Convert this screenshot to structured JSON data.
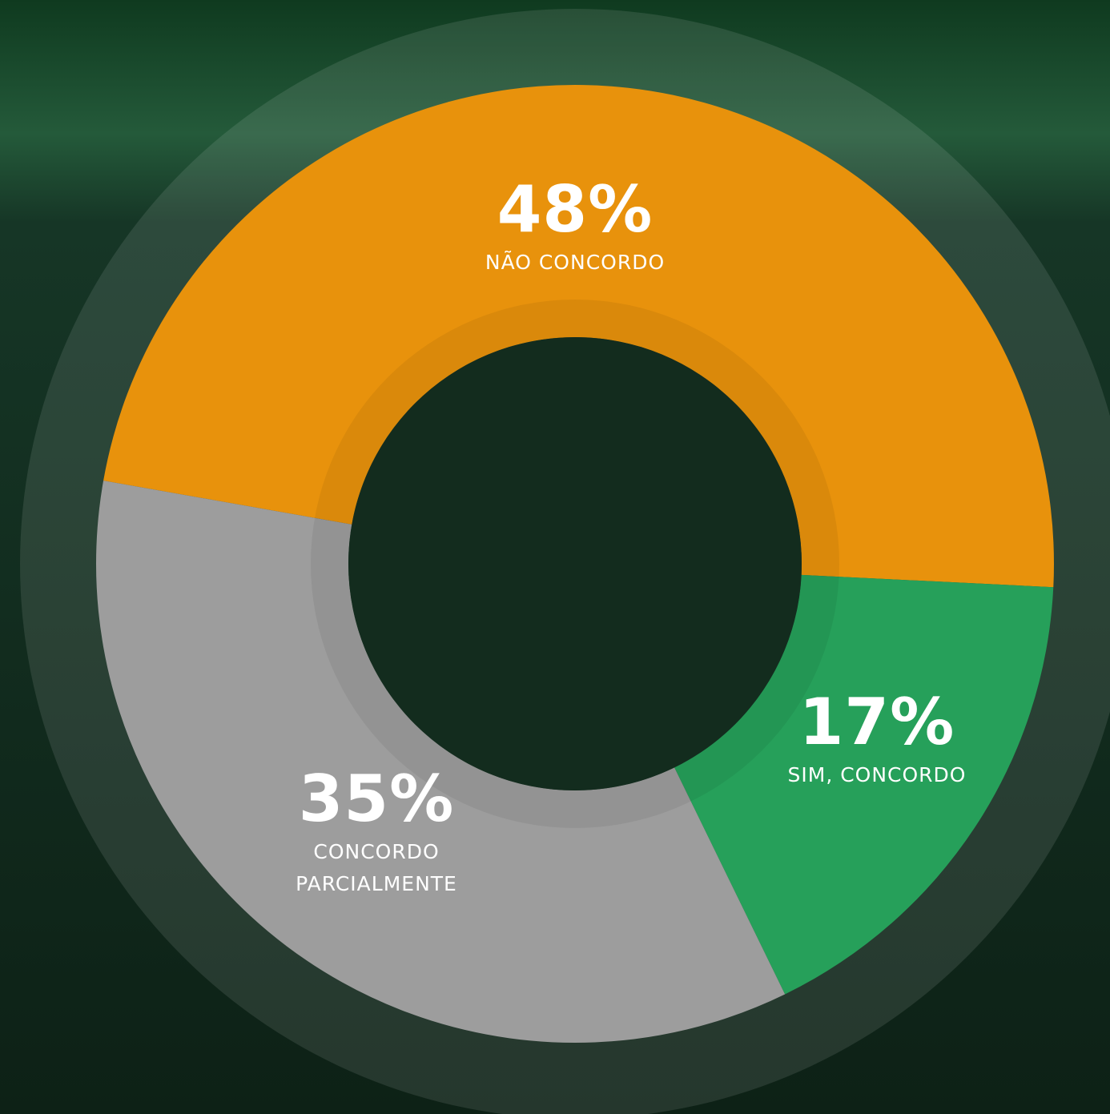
{
  "chart_data": {
    "type": "donut",
    "categories": [
      "NÃO CONCORDO",
      "SIM, CONCORDO",
      "CONCORDO PARCIALMENTE"
    ],
    "values": [
      48,
      17,
      35
    ],
    "value_labels": [
      "48%",
      "17%",
      "35%"
    ],
    "colors": [
      "#e8920c",
      "#26a05a",
      "#9d9d9d"
    ]
  }
}
